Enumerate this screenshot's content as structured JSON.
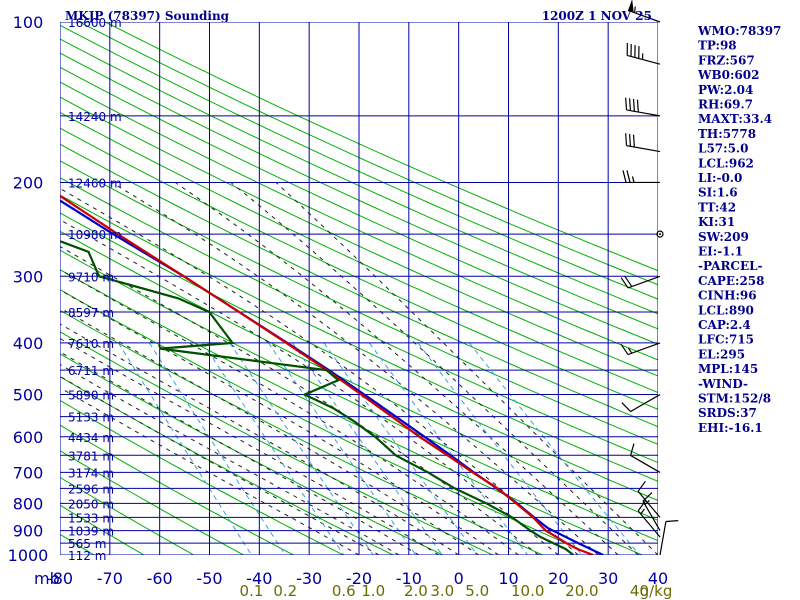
{
  "header": {
    "station_title": "MKJP (78397) Sounding",
    "valid_time": "1200Z  1 NOV 25"
  },
  "colors": {
    "grid": "#0000a0",
    "dry_adiabat": "#00b000",
    "moist_adiabat": "#202020",
    "mixing_ratio": "#3f9fdf",
    "temperature": "#cc0000",
    "dewpoint": "#005000",
    "parcel": "#0000cc",
    "labels": "#00008b"
  },
  "chart_data": {
    "type": "skew-t log-p sounding",
    "title": "MKJP (78397) Sounding",
    "pressure_unit_label": "mb",
    "temperature_unit": "C",
    "mixing_ratio_unit_label": "g/kg",
    "pressure_levels": [
      100,
      200,
      300,
      400,
      500,
      600,
      700,
      800,
      900,
      1000
    ],
    "pressure_labels": [
      "100",
      "200",
      "300",
      "400",
      "500",
      "600",
      "700",
      "800",
      "900",
      "1000"
    ],
    "temperature_ticks": [
      -80,
      -70,
      -60,
      -50,
      -40,
      -30,
      -20,
      -10,
      0,
      10,
      20,
      30,
      40
    ],
    "temperature_tick_labels": [
      "-80",
      "-70",
      "-60",
      "-50",
      "-40",
      "-30",
      "-20",
      "-10",
      "0",
      "10",
      "20",
      "30",
      "40"
    ],
    "mixing_ratio_lines": [
      0.1,
      0.2,
      0.6,
      1.0,
      2.0,
      3.0,
      5.0,
      10.0,
      20.0,
      40.0
    ],
    "mixing_ratio_labels": [
      "0.1",
      "0.2",
      "0.6",
      "1.0",
      "2.0",
      "3.0",
      "5.0",
      "10.0",
      "20.0",
      "40"
    ],
    "height_labels": [
      {
        "p": 100,
        "label": "16600 m"
      },
      {
        "p": 150,
        "label": "14240 m"
      },
      {
        "p": 200,
        "label": "12460 m"
      },
      {
        "p": 250,
        "label": "10980 m"
      },
      {
        "p": 300,
        "label": "9710 m"
      },
      {
        "p": 350,
        "label": "8597 m"
      },
      {
        "p": 400,
        "label": "7610 m"
      },
      {
        "p": 450,
        "label": "6711 m"
      },
      {
        "p": 500,
        "label": "5890 m"
      },
      {
        "p": 550,
        "label": "5133 m"
      },
      {
        "p": 600,
        "label": "4434 m"
      },
      {
        "p": 650,
        "label": "3781 m"
      },
      {
        "p": 700,
        "label": "3174 m"
      },
      {
        "p": 750,
        "label": "2596 m"
      },
      {
        "p": 800,
        "label": "2050 m"
      },
      {
        "p": 850,
        "label": "1533 m"
      },
      {
        "p": 900,
        "label": "1039 m"
      },
      {
        "p": 950,
        "label": "565 m"
      },
      {
        "p": 1000,
        "label": "112 m"
      }
    ],
    "temperature_profile": [
      {
        "p": 1000,
        "t": 27.0
      },
      {
        "p": 975,
        "t": 24.4
      },
      {
        "p": 950,
        "t": 22.6
      },
      {
        "p": 925,
        "t": 21.2
      },
      {
        "p": 900,
        "t": 19.6
      },
      {
        "p": 850,
        "t": 18.2
      },
      {
        "p": 800,
        "t": 16.0
      },
      {
        "p": 750,
        "t": 13.6
      },
      {
        "p": 700,
        "t": 10.0
      },
      {
        "p": 650,
        "t": 6.4
      },
      {
        "p": 600,
        "t": 2.4
      },
      {
        "p": 550,
        "t": -1.4
      },
      {
        "p": 500,
        "t": -5.6
      },
      {
        "p": 450,
        "t": -10.4
      },
      {
        "p": 400,
        "t": -16.2
      },
      {
        "p": 350,
        "t": -23.0
      },
      {
        "p": 300,
        "t": -31.0
      },
      {
        "p": 250,
        "t": -40.6
      },
      {
        "p": 200,
        "t": -51.8
      },
      {
        "p": 150,
        "t": -65.0
      },
      {
        "p": 125,
        "t": -72.0
      },
      {
        "p": 100,
        "t": -79.0
      }
    ],
    "dewpoint_profile": [
      {
        "p": 1000,
        "td": 23.0
      },
      {
        "p": 975,
        "td": 22.0
      },
      {
        "p": 950,
        "td": 20.0
      },
      {
        "p": 925,
        "td": 18.0
      },
      {
        "p": 900,
        "td": 16.5
      },
      {
        "p": 850,
        "td": 14.0
      },
      {
        "p": 800,
        "td": 10.0
      },
      {
        "p": 750,
        "td": 5.0
      },
      {
        "p": 700,
        "td": 1.0
      },
      {
        "p": 650,
        "td": -4.0
      },
      {
        "p": 600,
        "td": -6.5
      },
      {
        "p": 560,
        "td": -9.5
      },
      {
        "p": 530,
        "td": -12.5
      },
      {
        "p": 500,
        "td": -17.0
      },
      {
        "p": 470,
        "td": -9.0
      },
      {
        "p": 450,
        "td": -10.5
      },
      {
        "p": 410,
        "td": -42.0
      },
      {
        "p": 400,
        "td": -27.0
      },
      {
        "p": 350,
        "td": -29.0
      },
      {
        "p": 330,
        "td": -34.0
      },
      {
        "p": 300,
        "td": -48.0
      },
      {
        "p": 270,
        "td": -48.0
      },
      {
        "p": 250,
        "td": -56.0
      },
      {
        "p": 240,
        "td": -62.0
      },
      {
        "p": 220,
        "td": -67.0
      },
      {
        "p": 200,
        "td": -72.0
      },
      {
        "p": 160,
        "td": -83.0
      },
      {
        "p": 130,
        "td": -90.0
      },
      {
        "p": 115,
        "td": -98.0
      },
      {
        "p": 105,
        "td": -100.0
      }
    ],
    "parcel_profile": [
      {
        "p": 1000,
        "t": 29.0
      },
      {
        "p": 950,
        "t": 25.0
      },
      {
        "p": 890,
        "t": 20.2
      },
      {
        "p": 850,
        "t": 18.4
      },
      {
        "p": 800,
        "t": 16.2
      },
      {
        "p": 750,
        "t": 13.4
      },
      {
        "p": 700,
        "t": 10.2
      },
      {
        "p": 650,
        "t": 7.0
      },
      {
        "p": 600,
        "t": 3.4
      },
      {
        "p": 550,
        "t": -0.6
      },
      {
        "p": 500,
        "t": -5.0
      },
      {
        "p": 450,
        "t": -10.0
      },
      {
        "p": 400,
        "t": -16.0
      },
      {
        "p": 350,
        "t": -23.0
      },
      {
        "p": 300,
        "t": -31.0
      },
      {
        "p": 250,
        "t": -41.5
      },
      {
        "p": 200,
        "t": -53.5
      },
      {
        "p": 150,
        "t": -68.0
      },
      {
        "p": 125,
        "t": -76.0
      },
      {
        "p": 100,
        "t": -84.0
      }
    ],
    "wind_barbs": [
      {
        "p": 100,
        "dir": 290,
        "spd": 55
      },
      {
        "p": 120,
        "dir": 285,
        "spd": 45
      },
      {
        "p": 150,
        "dir": 280,
        "spd": 40
      },
      {
        "p": 175,
        "dir": 280,
        "spd": 30
      },
      {
        "p": 200,
        "dir": 270,
        "spd": 25
      },
      {
        "p": 250,
        "dir": 0,
        "spd": 0
      },
      {
        "p": 300,
        "dir": 250,
        "spd": 20
      },
      {
        "p": 400,
        "dir": 250,
        "spd": 15
      },
      {
        "p": 500,
        "dir": 240,
        "spd": 10
      },
      {
        "p": 700,
        "dir": 300,
        "spd": 10
      },
      {
        "p": 850,
        "dir": 320,
        "spd": 10
      },
      {
        "p": 900,
        "dir": 330,
        "spd": 15
      },
      {
        "p": 925,
        "dir": 320,
        "spd": 15
      },
      {
        "p": 1000,
        "dir": 10,
        "spd": 10
      }
    ]
  },
  "indices": [
    "WMO:78397",
    "TP:98",
    "FRZ:567",
    "WB0:602",
    "PW:2.04",
    "RH:69.7",
    "MAXT:33.4",
    "TH:5778",
    "L57:5.0",
    "LCL:962",
    "LI:-0.0",
    "SI:1.6",
    "TT:42",
    "KI:31",
    "SW:209",
    "EI:-1.1",
    "-PARCEL-",
    "CAPE:258",
    "CINH:96",
    "LCL:890",
    "CAP:2.4",
    "LFC:715",
    "EL:295",
    "MPL:145",
    "-WIND-",
    "STM:152/8",
    "SRDS:37",
    "EHI:-16.1"
  ]
}
